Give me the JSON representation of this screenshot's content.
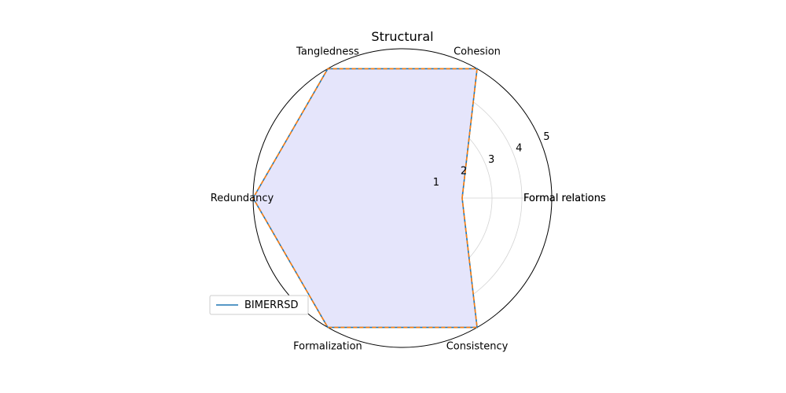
{
  "chart_data": {
    "type": "radar",
    "title": "Structural",
    "categories": [
      "Formal relations",
      "Cohesion",
      "Tangledness",
      "Redundancy",
      "Formalization",
      "Consistency"
    ],
    "duplicate_category_label": "Formal relations",
    "series": [
      {
        "name": "BIMERRSD",
        "values": [
          2,
          5,
          5,
          5,
          5,
          5
        ],
        "color": "#1f77b4",
        "line": "solid"
      },
      {
        "values": [
          2,
          5,
          5,
          5,
          5,
          5
        ],
        "color": "#ff7f0e",
        "line": "dashed"
      }
    ],
    "fill_color": "#e5e5fb",
    "rlim": [
      0,
      5
    ],
    "rticks": [
      "1",
      "2",
      "3",
      "4",
      "5"
    ],
    "grid": true,
    "legend_position": "lower-left"
  }
}
